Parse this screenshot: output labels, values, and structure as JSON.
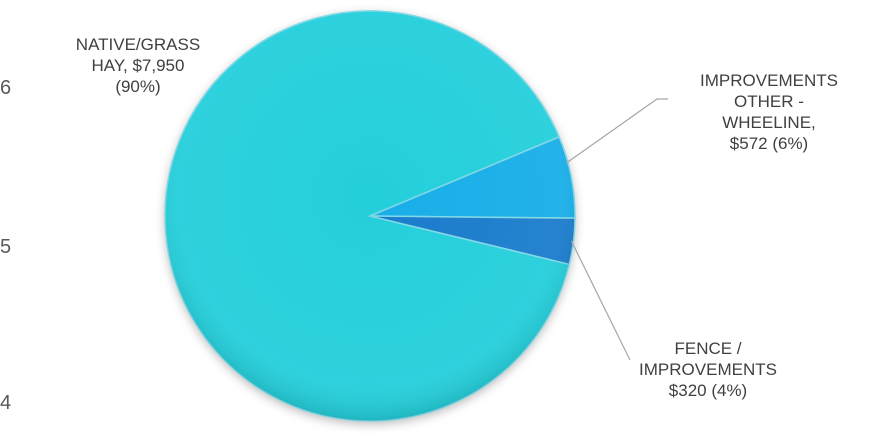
{
  "chart_data": {
    "type": "pie",
    "title": "",
    "slices": [
      {
        "label_lines": [
          "NATIVE/GRASS",
          "HAY,  $7,950",
          "(90%)"
        ],
        "value": 7950,
        "percent": 90,
        "color": "#23cfdb"
      },
      {
        "label_lines": [
          "IMPROVEMENTS",
          "OTHER -",
          "WHEELINE,",
          "$572  (6%)"
        ],
        "value": 572,
        "percent": 6,
        "color": "#18aee8"
      },
      {
        "label_lines": [
          "FENCE /",
          "IMPROVEMENTS",
          "$320  (4%)"
        ],
        "value": 320,
        "percent": 4,
        "color": "#1a7ccc"
      }
    ]
  },
  "edge_ticks": [
    "6",
    "5",
    "4"
  ]
}
